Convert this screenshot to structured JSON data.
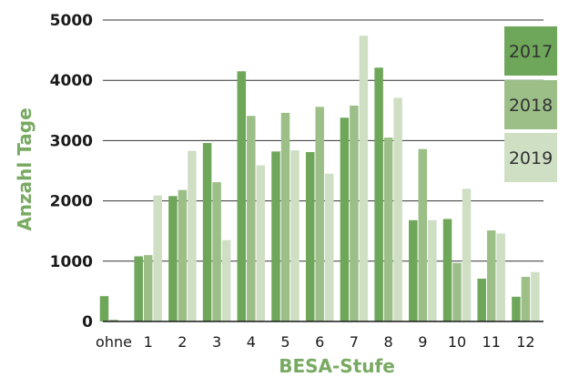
{
  "chart_data": {
    "type": "bar",
    "title": "",
    "xlabel": "BESA-Stufe",
    "ylabel": "Anzahl Tage",
    "label_color": "#79aa63",
    "categories": [
      "ohne",
      "1",
      "2",
      "3",
      "4",
      "5",
      "6",
      "7",
      "8",
      "9",
      "10",
      "11",
      "12"
    ],
    "ylim": [
      0,
      5000
    ],
    "yticks": [
      0,
      1000,
      2000,
      3000,
      4000,
      5000
    ],
    "grid": true,
    "legend_position": "right",
    "series": [
      {
        "name": "2017",
        "color": "#6ea65a",
        "values": [
          420,
          1080,
          2080,
          2960,
          4150,
          2820,
          2810,
          3380,
          4210,
          1680,
          1700,
          710,
          410
        ]
      },
      {
        "name": "2018",
        "color": "#9cbf88",
        "values": [
          30,
          1100,
          2180,
          2310,
          3410,
          3460,
          3560,
          3580,
          3050,
          2860,
          970,
          1510,
          740
        ]
      },
      {
        "name": "2019",
        "color": "#cfdfc4",
        "values": [
          0,
          2090,
          2830,
          1350,
          2590,
          2840,
          2450,
          4740,
          3710,
          1680,
          2200,
          1460,
          820
        ]
      }
    ]
  }
}
